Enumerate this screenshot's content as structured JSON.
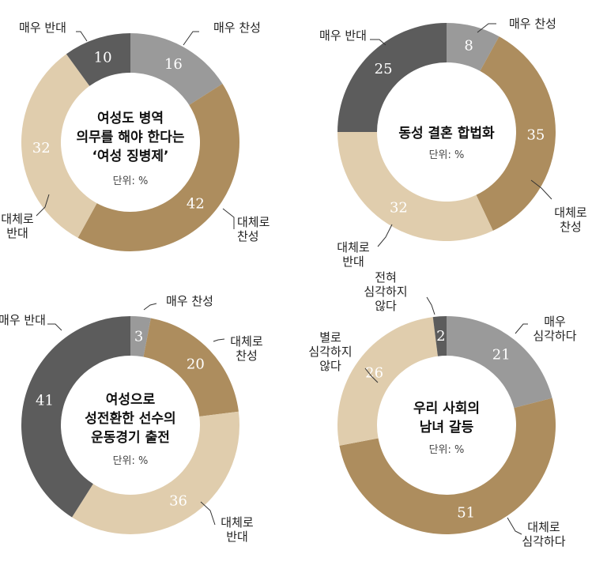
{
  "unit_label": "단위: %",
  "colors": {
    "매우 찬성": "#9a9a9a",
    "대체로 찬성": "#ad8d5e",
    "대체로 반대": "#e0cdad",
    "매우 반대": "#5c5c5c",
    "매우 심각하다": "#9a9a9a",
    "대체로 심각하다": "#ad8d5e",
    "별로 심각하지 않다": "#e0cdad",
    "전혀 심각하지 않다": "#5c5c5c"
  },
  "chart_data": [
    {
      "type": "pie",
      "title": "여성도 병역 의무를 해야 한다는 '여성 징병제'",
      "title_lines": [
        "여성도 병역",
        "의무를 해야 한다는",
        "‘여성 징병제’"
      ],
      "unit": "단위: %",
      "slices": [
        {
          "label": "매우 찬성",
          "label_lines": [
            "매우 찬성"
          ],
          "value": 16
        },
        {
          "label": "대체로 찬성",
          "label_lines": [
            "대체로",
            "찬성"
          ],
          "value": 42
        },
        {
          "label": "대체로 반대",
          "label_lines": [
            "대체로",
            "반대"
          ],
          "value": 32
        },
        {
          "label": "매우 반대",
          "label_lines": [
            "매우 반대"
          ],
          "value": 10
        }
      ]
    },
    {
      "type": "pie",
      "title": "동성 결혼 합법화",
      "title_lines": [
        "동성 결혼 합법화"
      ],
      "unit": "단위: %",
      "slices": [
        {
          "label": "매우 찬성",
          "label_lines": [
            "매우 찬성"
          ],
          "value": 8
        },
        {
          "label": "대체로 찬성",
          "label_lines": [
            "대체로",
            "찬성"
          ],
          "value": 35
        },
        {
          "label": "대체로 반대",
          "label_lines": [
            "대체로",
            "반대"
          ],
          "value": 32
        },
        {
          "label": "매우 반대",
          "label_lines": [
            "매우 반대"
          ],
          "value": 25
        }
      ]
    },
    {
      "type": "pie",
      "title": "여성으로 성전환한 선수의 운동경기 출전",
      "title_lines": [
        "여성으로",
        "성전환한 선수의",
        "운동경기 출전"
      ],
      "unit": "단위: %",
      "slices": [
        {
          "label": "매우 찬성",
          "label_lines": [
            "매우 찬성"
          ],
          "value": 3
        },
        {
          "label": "대체로 찬성",
          "label_lines": [
            "대체로",
            "찬성"
          ],
          "value": 20
        },
        {
          "label": "대체로 반대",
          "label_lines": [
            "대체로",
            "반대"
          ],
          "value": 36
        },
        {
          "label": "매우 반대",
          "label_lines": [
            "매우 반대"
          ],
          "value": 41
        }
      ]
    },
    {
      "type": "pie",
      "title": "우리 사회의 남녀 갈등",
      "title_lines": [
        "우리 사회의",
        "남녀 갈등"
      ],
      "unit": "단위: %",
      "slices": [
        {
          "label": "매우 심각하다",
          "label_lines": [
            "매우",
            "심각하다"
          ],
          "value": 21
        },
        {
          "label": "대체로 심각하다",
          "label_lines": [
            "대체로",
            "심각하다"
          ],
          "value": 51
        },
        {
          "label": "별로 심각하지 않다",
          "label_lines": [
            "별로",
            "심각하지",
            "않다"
          ],
          "value": 26
        },
        {
          "label": "전혀 심각하지 않다",
          "label_lines": [
            "전혀",
            "심각하지",
            "않다"
          ],
          "value": 2
        }
      ]
    }
  ]
}
